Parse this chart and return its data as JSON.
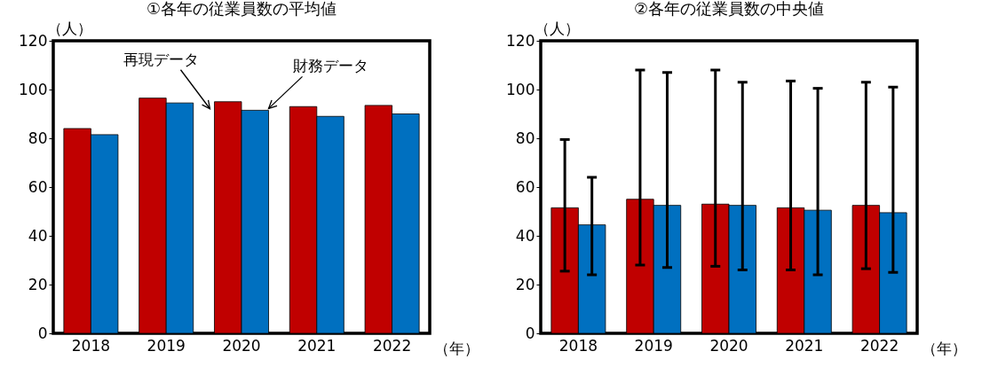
{
  "chart_data": [
    {
      "type": "bar",
      "title": "①各年の従業員数の平均値",
      "ylabel": "（人）",
      "xlabel": "（年）",
      "categories": [
        "2018",
        "2019",
        "2020",
        "2021",
        "2022"
      ],
      "series": [
        {
          "name": "再現データ",
          "color": "#c00000",
          "values": [
            84,
            96.5,
            95,
            93,
            93.5
          ]
        },
        {
          "name": "財務データ",
          "color": "#0070c0",
          "values": [
            81.5,
            94.5,
            91.5,
            89,
            90
          ]
        }
      ],
      "ylim": [
        0,
        120
      ],
      "yticks": [
        0,
        20,
        40,
        60,
        80,
        100,
        120
      ]
    },
    {
      "type": "bar",
      "title": "②各年の従業員数の中央値",
      "ylabel": "（人）",
      "xlabel": "（年）",
      "categories": [
        "2018",
        "2019",
        "2020",
        "2021",
        "2022"
      ],
      "series": [
        {
          "color": "#c00000",
          "values": [
            51.5,
            55,
            53,
            51.5,
            52.5
          ],
          "errors": [
            [
              25.5,
              79.5
            ],
            [
              28,
              108
            ],
            [
              27.5,
              108
            ],
            [
              26,
              103.5
            ],
            [
              26.5,
              103
            ]
          ]
        },
        {
          "color": "#0070c0",
          "values": [
            44.5,
            52.5,
            52.5,
            50.5,
            49.5
          ],
          "errors": [
            [
              24,
              64
            ],
            [
              27,
              107
            ],
            [
              26,
              103
            ],
            [
              24,
              100.5
            ],
            [
              25,
              101
            ]
          ]
        }
      ],
      "ylim": [
        0,
        120
      ],
      "yticks": [
        0,
        20,
        40,
        60,
        80,
        100,
        120
      ]
    }
  ]
}
